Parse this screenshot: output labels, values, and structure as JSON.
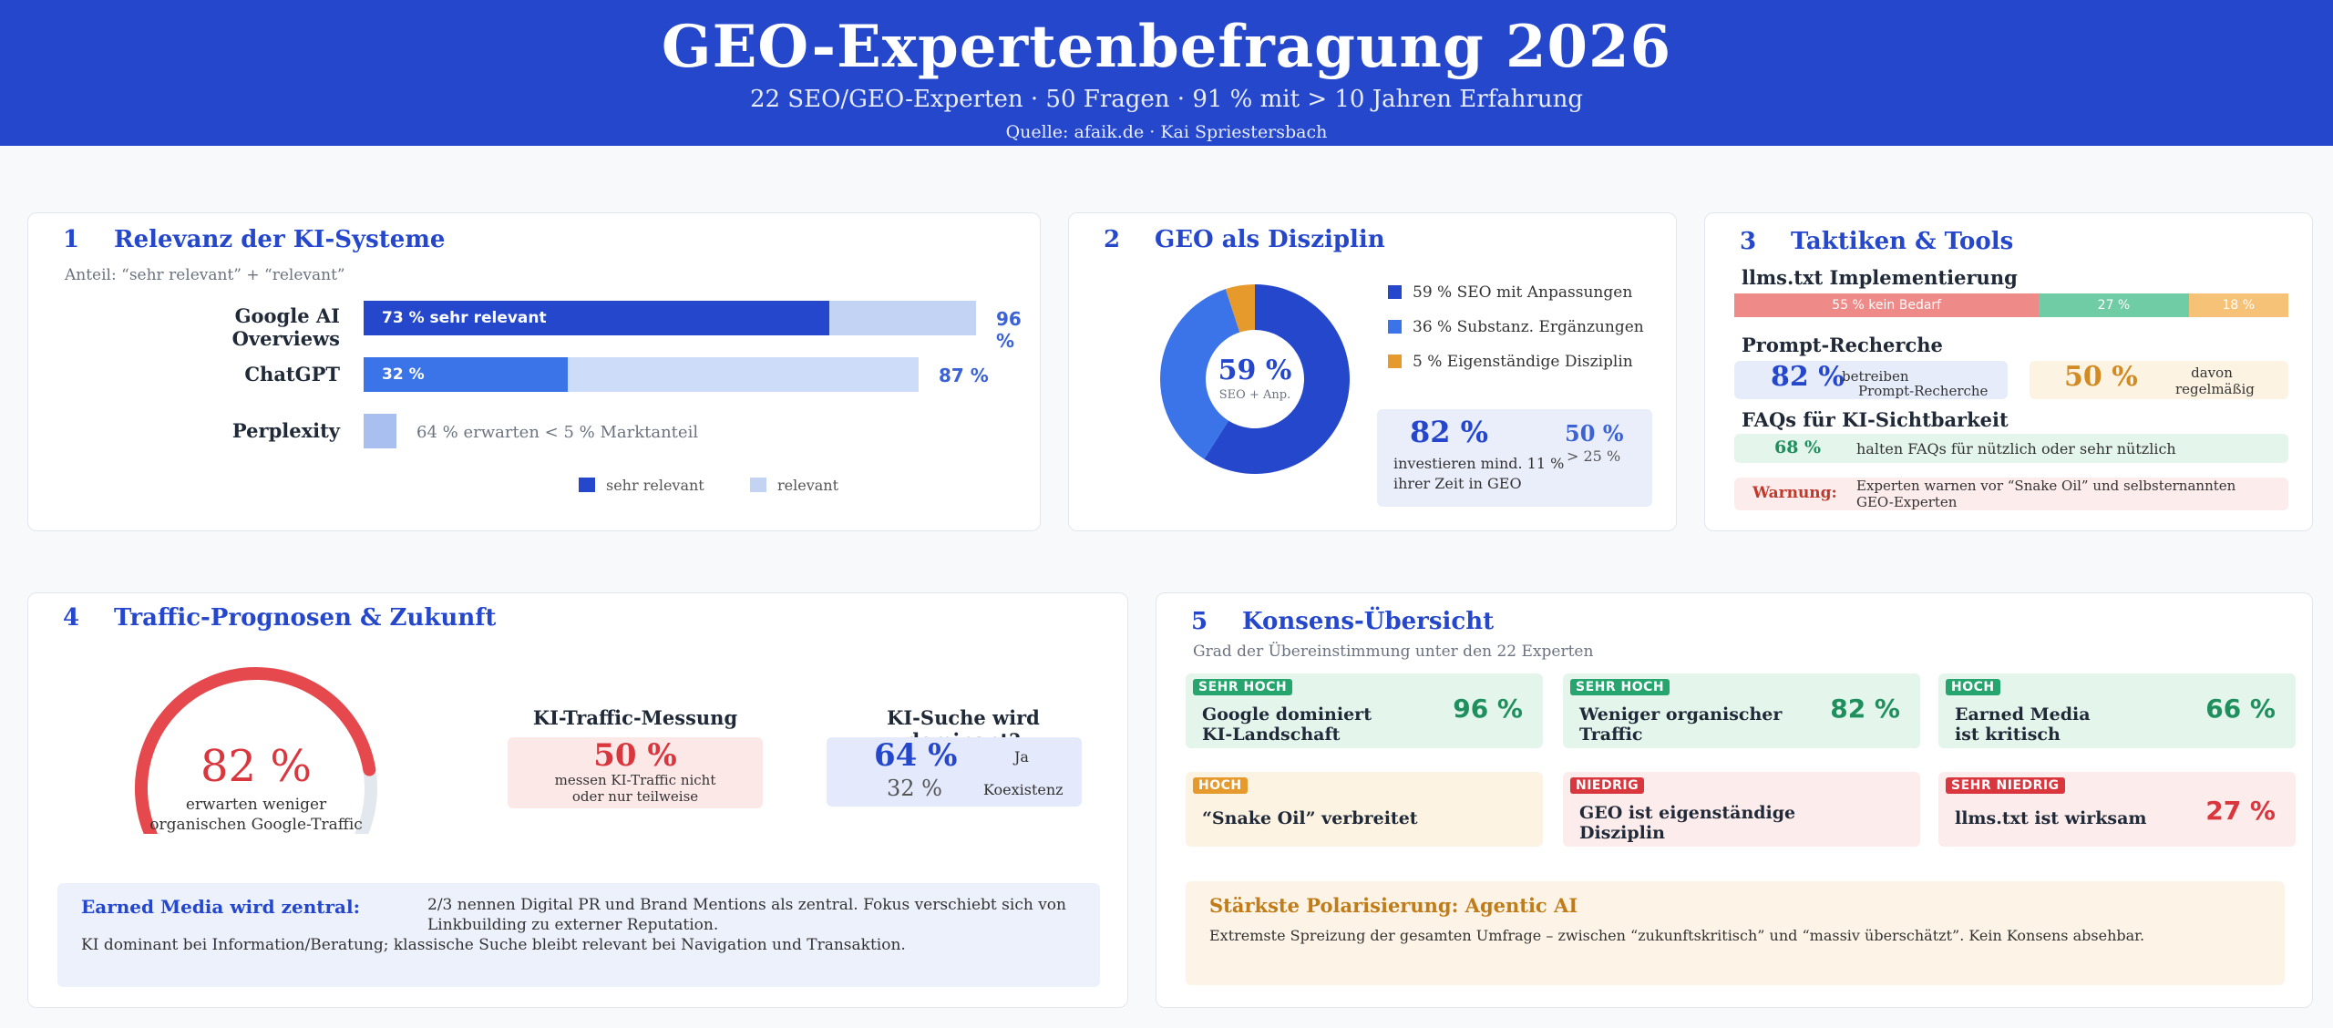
{
  "header": {
    "title": "GEO-Expertenbefragung 2026",
    "subtitle": "22 SEO/GEO-Experten · 50 Fragen · 91 % mit > 10 Jahren Erfahrung",
    "source": "Quelle: afaik.de · Kai Spriestersbach"
  },
  "colors": {
    "header": "#2547cc",
    "dark_blue": "#2547cc",
    "mid_blue": "#3b74e8",
    "light_blue": "#c3d3f4",
    "orange": "#e69a2b",
    "red": "#e5484d",
    "green": "#2fa77a"
  },
  "card1": {
    "num": "1",
    "title": "Relevanz der KI-Systeme",
    "subtitle": "Anteil: “sehr relevant” + “relevant”",
    "legend_sehr": "sehr relevant",
    "legend_relevant": "relevant",
    "perplexity_note": "64 % erwarten < 5 % Marktanteil"
  },
  "chart_data": [
    {
      "type": "bar",
      "orientation": "horizontal",
      "stacked": true,
      "categories": [
        "Google AI Overviews",
        "ChatGPT",
        "Perplexity"
      ],
      "series": [
        {
          "name": "sehr relevant",
          "values": [
            73,
            32,
            null
          ]
        },
        {
          "name": "relevant",
          "values": [
            23,
            55,
            null
          ]
        }
      ],
      "totals": [
        96,
        87,
        null
      ],
      "segment_labels": [
        "73 % sehr relevant",
        "32 %",
        ""
      ],
      "total_labels": [
        "96 %",
        "87 %",
        ""
      ],
      "ylim": [
        0,
        100
      ]
    },
    {
      "type": "pie",
      "donut": true,
      "labels": [
        "SEO mit Anpassungen",
        "Substanz. Ergänzungen",
        "Eigenständige Disziplin"
      ],
      "values": [
        59,
        36,
        5
      ],
      "legend_labels": [
        "59 % SEO mit Anpassungen",
        "36 % Substanz. Ergänzungen",
        "5 % Eigenständige Disziplin"
      ],
      "center_value": "59 %",
      "center_label": "SEO + Anp.",
      "colors": [
        "#2547cc",
        "#3b74e8",
        "#e69a2b"
      ]
    },
    {
      "type": "bar",
      "orientation": "horizontal",
      "stacked": true,
      "title": "llms.txt Implementierung",
      "categories": [
        "llms.txt"
      ],
      "series": [
        {
          "name": "kein Bedarf",
          "values": [
            55
          ]
        },
        {
          "name": "",
          "values": [
            27
          ]
        },
        {
          "name": "",
          "values": [
            18
          ]
        }
      ],
      "segment_labels": [
        "55 % kein Bedarf",
        "27 %",
        "18 %"
      ],
      "colors": [
        "#ee8a87",
        "#6fcca5",
        "#f6c277"
      ]
    },
    {
      "type": "gauge",
      "value": 82,
      "range": [
        0,
        100
      ],
      "value_label": "82 %",
      "label": "erwarten weniger organischen Google-Traffic"
    }
  ],
  "card2": {
    "num": "2",
    "title": "GEO als Disziplin",
    "invest_value": "82 %",
    "invest_text_1": "investieren mind. 11 %",
    "invest_text_2": "ihrer Zeit in GEO",
    "invest_share": "50 %",
    "invest_share_label": "> 25 %"
  },
  "card3": {
    "num": "3",
    "title": "Taktiken & Tools",
    "prompt_title": "Prompt-Recherche",
    "prompt_value": "82 %",
    "prompt_text_1": "betreiben",
    "prompt_text_2": "Prompt-Recherche",
    "prompt_regular_value": "50 %",
    "prompt_regular_1": "davon",
    "prompt_regular_2": "regelmäßig",
    "faq_title": "FAQs für KI-Sichtbarkeit",
    "faq_value": "68 %",
    "faq_text": "halten FAQs für nützlich oder sehr nützlich",
    "warning_label": "Warnung:",
    "warning_text_1": "Experten warnen vor “Snake Oil” und selbsternannten",
    "warning_text_2": "GEO-Experten"
  },
  "card4": {
    "num": "4",
    "title": "Traffic-Prognosen & Zukunft",
    "gauge_label_1": "erwarten weniger",
    "gauge_label_2": "organischen Google-Traffic",
    "measure_title": "KI-Traffic-Messung",
    "measure_value": "50 %",
    "measure_text_1": "messen KI-Traffic nicht",
    "measure_text_2": "oder nur teilweise",
    "dominant_title": "KI-Suche wird dominant?",
    "dominant_yes_value": "64 %",
    "dominant_yes_label": "Ja",
    "dominant_co_value": "32 %",
    "dominant_co_label": "Koexistenz",
    "earned_title": "Earned Media wird zentral:",
    "earned_text_1": "2/3 nennen Digital PR und Brand Mentions als zentral. Fokus verschiebt sich von",
    "earned_text_2": "Linkbuilding zu externer Reputation.",
    "earned_text_3": "KI dominant bei Information/Beratung; klassische Suche bleibt relevant bei Navigation und Transaktion."
  },
  "card5": {
    "num": "5",
    "title": "Konsens-Übersicht",
    "subtitle": "Grad der Übereinstimmung unter den 22 Experten",
    "tiles": [
      {
        "badge": "SEHR HOCH",
        "line1": "Google dominiert",
        "line2": "KI-Landschaft",
        "value": "96 %"
      },
      {
        "badge": "SEHR HOCH",
        "line1": "Weniger organischer",
        "line2": "Traffic",
        "value": "82 %"
      },
      {
        "badge": "HOCH",
        "line1": "Earned Media",
        "line2": "ist kritisch",
        "value": "66 %"
      },
      {
        "badge": "HOCH",
        "line1": "“Snake Oil” verbreitet",
        "line2": "",
        "value": ""
      },
      {
        "badge": "NIEDRIG",
        "line1": "GEO ist eigenständige",
        "line2": "Disziplin",
        "value": ""
      },
      {
        "badge": "SEHR NIEDRIG",
        "line1": "llms.txt ist wirksam",
        "line2": "",
        "value": "27 %"
      }
    ],
    "polar_title": "Stärkste Polarisierung: Agentic AI",
    "polar_text": "Extremste Spreizung der gesamten Umfrage – zwischen “zukunftskritisch” und “massiv überschätzt”. Kein Konsens absehbar."
  }
}
